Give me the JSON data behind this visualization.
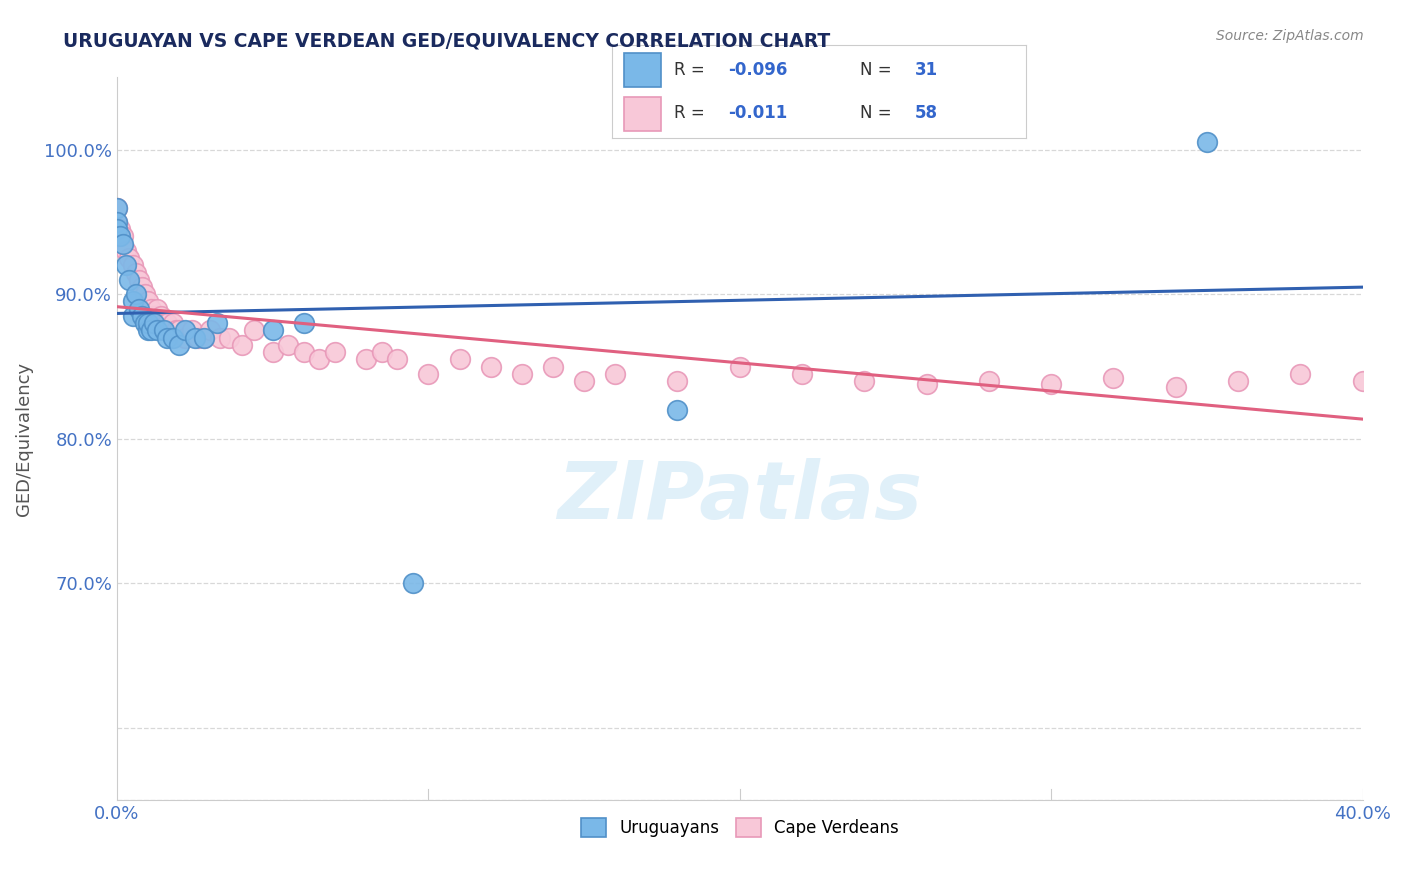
{
  "title": "URUGUAYAN VS CAPE VERDEAN GED/EQUIVALENCY CORRELATION CHART",
  "source": "Source: ZipAtlas.com",
  "ylabel": "GED/Equivalency",
  "xlim": [
    0.0,
    0.4
  ],
  "ylim": [
    0.55,
    1.05
  ],
  "x_ticks": [
    0.0,
    0.1,
    0.2,
    0.3,
    0.4
  ],
  "x_tick_labels": [
    "0.0%",
    "",
    "",
    "",
    "40.0%"
  ],
  "y_ticks": [
    0.55,
    0.6,
    0.7,
    0.8,
    0.9,
    1.0
  ],
  "y_tick_labels": [
    "",
    "",
    "70.0%",
    "80.0%",
    "90.0%",
    "100.0%"
  ],
  "uruguayan_x": [
    0.0,
    0.0,
    0.0,
    0.001,
    0.002,
    0.003,
    0.004,
    0.005,
    0.005,
    0.006,
    0.007,
    0.008,
    0.009,
    0.01,
    0.01,
    0.011,
    0.012,
    0.013,
    0.015,
    0.016,
    0.018,
    0.02,
    0.022,
    0.025,
    0.028,
    0.032,
    0.05,
    0.06,
    0.095,
    0.18,
    0.35
  ],
  "uruguayan_y": [
    0.96,
    0.95,
    0.945,
    0.94,
    0.935,
    0.92,
    0.91,
    0.895,
    0.885,
    0.9,
    0.89,
    0.885,
    0.88,
    0.875,
    0.88,
    0.875,
    0.88,
    0.875,
    0.875,
    0.87,
    0.87,
    0.865,
    0.875,
    0.87,
    0.87,
    0.88,
    0.875,
    0.88,
    0.7,
    0.82,
    1.005
  ],
  "capeverdean_x": [
    0.0,
    0.0,
    0.001,
    0.002,
    0.003,
    0.004,
    0.005,
    0.006,
    0.007,
    0.008,
    0.009,
    0.01,
    0.011,
    0.012,
    0.013,
    0.014,
    0.015,
    0.016,
    0.017,
    0.018,
    0.019,
    0.02,
    0.022,
    0.024,
    0.026,
    0.028,
    0.03,
    0.033,
    0.036,
    0.04,
    0.044,
    0.05,
    0.055,
    0.06,
    0.065,
    0.07,
    0.08,
    0.085,
    0.09,
    0.1,
    0.11,
    0.12,
    0.13,
    0.14,
    0.15,
    0.16,
    0.18,
    0.2,
    0.22,
    0.24,
    0.26,
    0.28,
    0.3,
    0.32,
    0.34,
    0.36,
    0.38,
    0.4
  ],
  "capeverdean_y": [
    0.96,
    0.95,
    0.945,
    0.94,
    0.93,
    0.925,
    0.92,
    0.915,
    0.91,
    0.905,
    0.9,
    0.895,
    0.89,
    0.885,
    0.89,
    0.885,
    0.88,
    0.88,
    0.875,
    0.88,
    0.875,
    0.875,
    0.87,
    0.875,
    0.87,
    0.87,
    0.875,
    0.87,
    0.87,
    0.865,
    0.875,
    0.86,
    0.865,
    0.86,
    0.855,
    0.86,
    0.855,
    0.86,
    0.855,
    0.845,
    0.855,
    0.85,
    0.845,
    0.85,
    0.84,
    0.845,
    0.84,
    0.85,
    0.845,
    0.84,
    0.838,
    0.84,
    0.838,
    0.842,
    0.836,
    0.84,
    0.845,
    0.84
  ],
  "uruguayan_color": "#7ab8e8",
  "uruguayan_edge_color": "#5090c8",
  "capeverdean_color": "#f8c8d8",
  "capeverdean_edge_color": "#e898b8",
  "uruguayan_line_color": "#3060b0",
  "capeverdean_line_color": "#e06080",
  "watermark": "ZIPatlas",
  "background_color": "#ffffff",
  "grid_color": "#d8d8d8",
  "title_color": "#1a2a5e",
  "source_color": "#888888",
  "tick_color": "#4472c4",
  "ylabel_color": "#555555"
}
